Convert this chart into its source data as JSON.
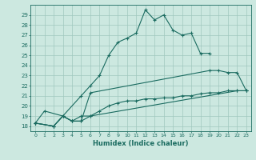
{
  "xlabel": "Humidex (Indice chaleur)",
  "bg_color": "#cce8e0",
  "grid_color": "#a0c8be",
  "line_color": "#1a6b60",
  "xlim": [
    -0.5,
    23.5
  ],
  "ylim": [
    17.5,
    30.0
  ],
  "xticks": [
    0,
    1,
    2,
    3,
    4,
    5,
    6,
    7,
    8,
    9,
    10,
    11,
    12,
    13,
    14,
    15,
    16,
    17,
    18,
    19,
    20,
    21,
    22,
    23
  ],
  "yticks": [
    18,
    19,
    20,
    21,
    22,
    23,
    24,
    25,
    26,
    27,
    28,
    29
  ],
  "series1_x": [
    0,
    1,
    3,
    5,
    6,
    7,
    8,
    9,
    10,
    11,
    12,
    13,
    14,
    15,
    16,
    17,
    18,
    19
  ],
  "series1_y": [
    18.3,
    19.5,
    19.0,
    21.0,
    22.0,
    23.0,
    25.0,
    26.3,
    26.7,
    27.2,
    29.5,
    28.5,
    29.0,
    27.5,
    27.0,
    27.2,
    25.2,
    25.2
  ],
  "series2_x": [
    0,
    2,
    3,
    4,
    5,
    6,
    19,
    20,
    21,
    22,
    23
  ],
  "series2_y": [
    18.3,
    18.0,
    19.0,
    18.5,
    18.5,
    21.3,
    23.5,
    23.5,
    23.3,
    23.3,
    21.5
  ],
  "series3_x": [
    0,
    2,
    3,
    4,
    5,
    6,
    22,
    23
  ],
  "series3_y": [
    18.3,
    18.0,
    19.0,
    18.5,
    19.0,
    19.0,
    21.5,
    21.5
  ],
  "series4_x": [
    0,
    2,
    3,
    4,
    5,
    6,
    7,
    8,
    9,
    10,
    11,
    12,
    13,
    14,
    15,
    16,
    17,
    18,
    19,
    20,
    21,
    22,
    23
  ],
  "series4_y": [
    18.3,
    18.0,
    19.0,
    18.5,
    18.5,
    19.0,
    19.5,
    20.0,
    20.3,
    20.5,
    20.5,
    20.7,
    20.7,
    20.8,
    20.8,
    21.0,
    21.0,
    21.2,
    21.3,
    21.3,
    21.5,
    21.5,
    21.5
  ]
}
